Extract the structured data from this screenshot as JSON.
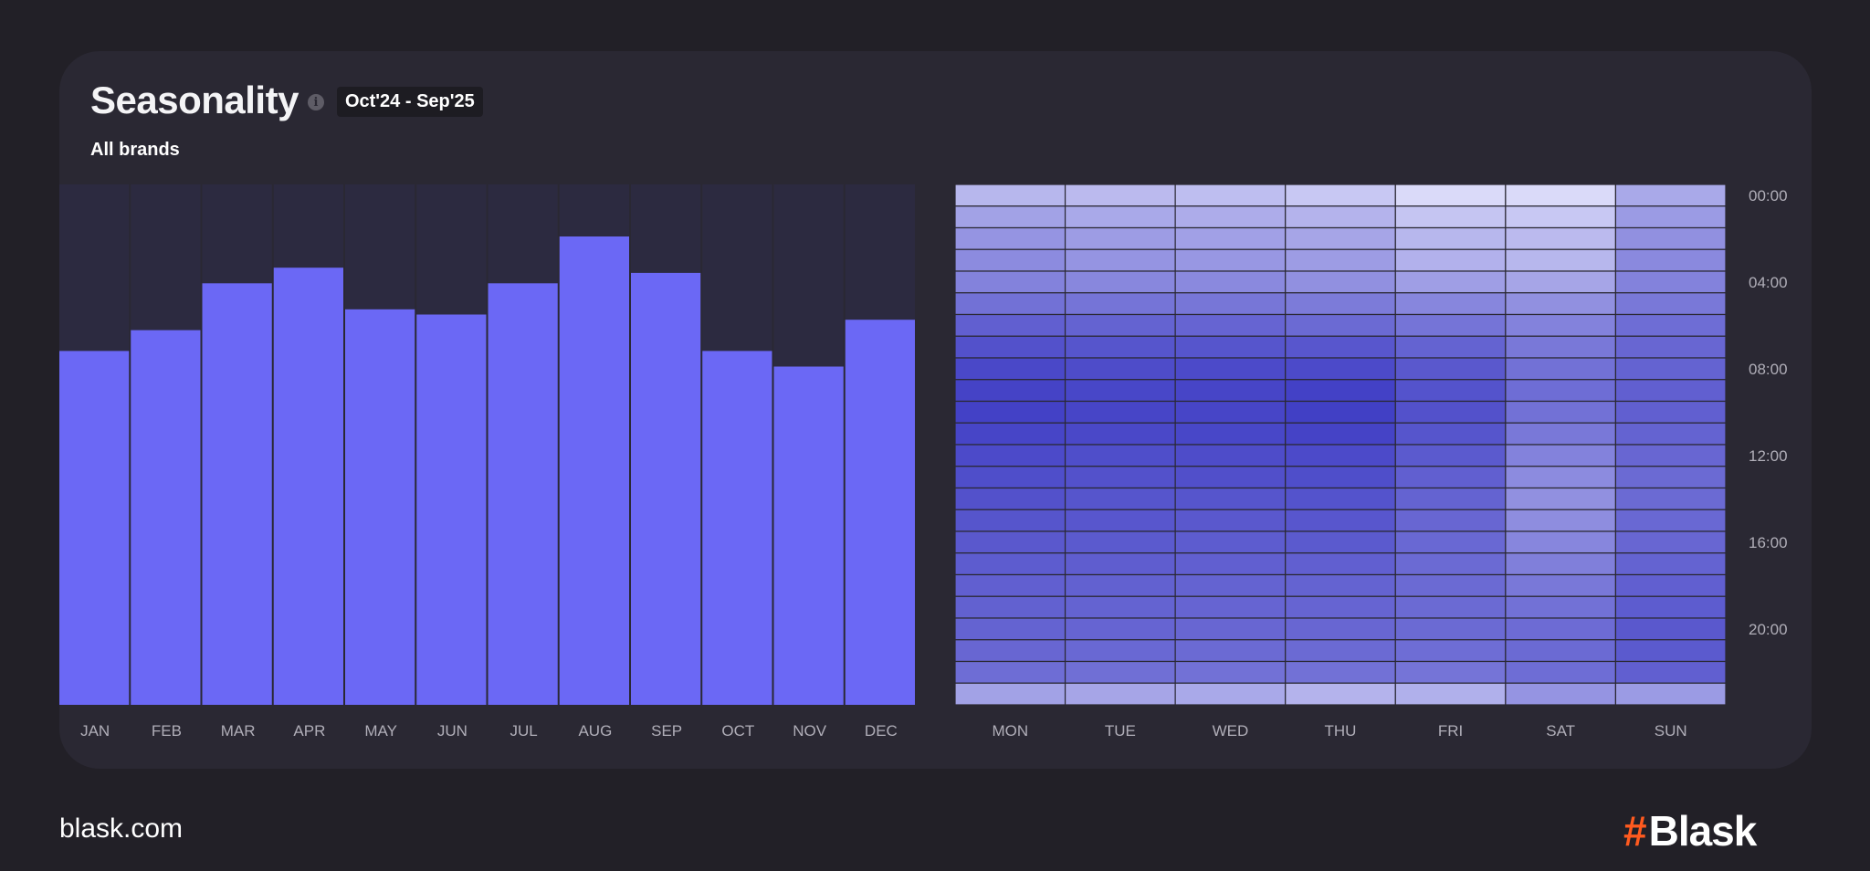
{
  "header": {
    "title": "Seasonality",
    "info_icon": "info-icon",
    "period": "Oct'24 - Sep'25",
    "subtitle": "All brands"
  },
  "colors": {
    "background": "#222027",
    "card": "#2a2833",
    "bar": "#6b68f5",
    "bar_track": "#2c2a40",
    "brand_accent": "#ff5a1f"
  },
  "footer": {
    "site": "blask.com",
    "brand_mark": "#",
    "brand_name": "Blask"
  },
  "chart_data": [
    {
      "type": "bar",
      "categories": [
        "JAN",
        "FEB",
        "MAR",
        "APR",
        "MAY",
        "JUN",
        "JUL",
        "AUG",
        "SEP",
        "OCT",
        "NOV",
        "DEC"
      ],
      "values": [
        68,
        72,
        81,
        84,
        76,
        75,
        81,
        90,
        83,
        68,
        65,
        74
      ],
      "ylim": [
        0,
        100
      ],
      "title": "",
      "xlabel": "",
      "ylabel": "",
      "grid": false,
      "legend": "none"
    },
    {
      "type": "heatmap",
      "x_categories": [
        "MON",
        "TUE",
        "WED",
        "THU",
        "FRI",
        "SAT",
        "SUN"
      ],
      "y_tick_labels": [
        "00:00",
        "04:00",
        "08:00",
        "12:00",
        "16:00",
        "20:00"
      ],
      "y_tick_hours": [
        0,
        4,
        8,
        12,
        16,
        20
      ],
      "hours": [
        0,
        1,
        2,
        3,
        4,
        5,
        6,
        7,
        8,
        9,
        10,
        11,
        12,
        13,
        14,
        15,
        16,
        17,
        18,
        19,
        20,
        21,
        22,
        23
      ],
      "scale": [
        0,
        1
      ],
      "color_low": "#ebebff",
      "color_high": "#3e3cc4",
      "values": [
        [
          0.3,
          0.28,
          0.26,
          0.2,
          0.1,
          0.1,
          0.38
        ],
        [
          0.42,
          0.38,
          0.36,
          0.32,
          0.22,
          0.2,
          0.46
        ],
        [
          0.5,
          0.45,
          0.43,
          0.4,
          0.3,
          0.28,
          0.52
        ],
        [
          0.55,
          0.5,
          0.48,
          0.45,
          0.33,
          0.3,
          0.56
        ],
        [
          0.6,
          0.57,
          0.56,
          0.52,
          0.44,
          0.4,
          0.6
        ],
        [
          0.7,
          0.68,
          0.67,
          0.64,
          0.58,
          0.52,
          0.66
        ],
        [
          0.8,
          0.78,
          0.77,
          0.74,
          0.68,
          0.6,
          0.72
        ],
        [
          0.88,
          0.86,
          0.86,
          0.85,
          0.78,
          0.66,
          0.76
        ],
        [
          0.93,
          0.91,
          0.92,
          0.92,
          0.84,
          0.7,
          0.78
        ],
        [
          0.96,
          0.94,
          0.95,
          0.97,
          0.87,
          0.72,
          0.8
        ],
        [
          0.97,
          0.95,
          0.95,
          0.98,
          0.88,
          0.7,
          0.8
        ],
        [
          0.95,
          0.93,
          0.94,
          0.96,
          0.86,
          0.66,
          0.78
        ],
        [
          0.92,
          0.9,
          0.91,
          0.92,
          0.83,
          0.6,
          0.76
        ],
        [
          0.9,
          0.88,
          0.89,
          0.9,
          0.8,
          0.55,
          0.74
        ],
        [
          0.88,
          0.86,
          0.86,
          0.87,
          0.78,
          0.52,
          0.74
        ],
        [
          0.86,
          0.85,
          0.84,
          0.85,
          0.76,
          0.54,
          0.75
        ],
        [
          0.84,
          0.83,
          0.82,
          0.83,
          0.75,
          0.58,
          0.76
        ],
        [
          0.82,
          0.81,
          0.8,
          0.8,
          0.74,
          0.62,
          0.78
        ],
        [
          0.8,
          0.79,
          0.78,
          0.78,
          0.74,
          0.66,
          0.8
        ],
        [
          0.79,
          0.78,
          0.77,
          0.77,
          0.74,
          0.7,
          0.82
        ],
        [
          0.78,
          0.77,
          0.76,
          0.76,
          0.74,
          0.73,
          0.84
        ],
        [
          0.76,
          0.75,
          0.74,
          0.74,
          0.72,
          0.74,
          0.83
        ],
        [
          0.72,
          0.71,
          0.7,
          0.7,
          0.68,
          0.72,
          0.8
        ],
        [
          0.42,
          0.4,
          0.38,
          0.32,
          0.34,
          0.5,
          0.46
        ]
      ],
      "title": "",
      "xlabel": "",
      "ylabel": "",
      "legend": "none"
    }
  ]
}
